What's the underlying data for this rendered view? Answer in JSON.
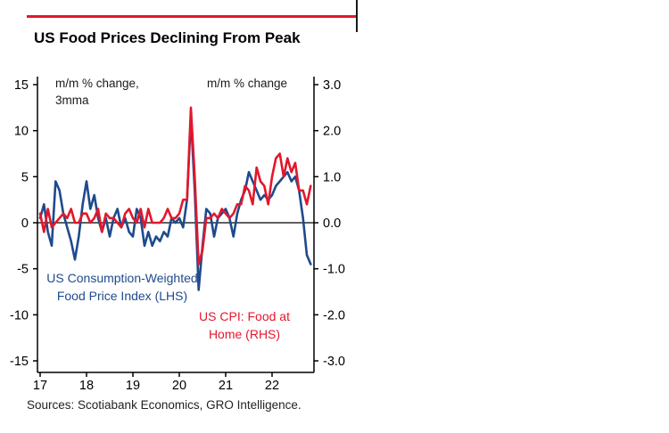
{
  "page": {
    "title": "US Food Prices Declining From Peak",
    "sources": "Sources: Scotiabank Economics, GRO Intelligence."
  },
  "colors": {
    "accent_red": "#e3172c",
    "series_blue": "#1f4a8c",
    "series_red": "#e3172c",
    "axis_black": "#000000"
  },
  "chart_data": {
    "type": "line",
    "title": "US Food Prices Declining From Peak",
    "grid": "zero-line-only",
    "legend_position": "in-plot annotations",
    "left_axis": {
      "caption_line1": "m/m % change,",
      "caption_line2": "3mma",
      "range": [
        -15,
        15
      ],
      "ticks": [
        15,
        10,
        5,
        0,
        -5,
        -10,
        -15
      ],
      "tick_labels": [
        "15",
        "10",
        "5",
        "0",
        "-5",
        "-10",
        "-15"
      ]
    },
    "right_axis": {
      "caption": "m/m % change",
      "range": [
        -3,
        3
      ],
      "ticks": [
        3,
        2,
        1,
        0,
        -1,
        -2,
        -3
      ],
      "tick_labels": [
        "3.0",
        "2.0",
        "1.0",
        "0.0",
        "-1.0",
        "-2.0",
        "-3.0"
      ]
    },
    "x_axis": {
      "tick_labels": [
        "17",
        "18",
        "19",
        "20",
        "21",
        "22"
      ],
      "start": "2017-01",
      "end": "2022-11",
      "frequency": "monthly"
    },
    "series": [
      {
        "name": "US Consumption-Weighted Food Price Index (LHS)",
        "axis": "left",
        "color": "#1f4a8c",
        "values": [
          0.5,
          2.0,
          -1.0,
          -2.5,
          4.5,
          3.5,
          1.0,
          -0.5,
          -2.0,
          -4.0,
          -1.5,
          2.0,
          4.5,
          1.5,
          3.0,
          0.5,
          -1.0,
          0.5,
          -1.5,
          0.5,
          1.5,
          -0.5,
          0.5,
          -1.0,
          -1.5,
          1.5,
          0.5,
          -2.5,
          -1.0,
          -2.5,
          -1.5,
          -2.0,
          -1.0,
          -1.5,
          0.5,
          0.0,
          0.5,
          -0.5,
          2.5,
          11.5,
          3.5,
          -7.3,
          -2.5,
          1.5,
          1.0,
          -1.5,
          0.5,
          1.0,
          1.5,
          0.5,
          -1.5,
          1.0,
          2.5,
          3.5,
          5.5,
          4.5,
          3.5,
          2.5,
          3.0,
          2.5,
          3.0,
          4.0,
          4.5,
          5.0,
          5.5,
          4.5,
          5.0,
          3.5,
          0.5,
          -3.5,
          -4.5
        ]
      },
      {
        "name": "US CPI: Food at Home (RHS)",
        "axis": "right",
        "color": "#e3172c",
        "values": [
          0.2,
          -0.2,
          0.3,
          -0.1,
          0.0,
          0.1,
          0.2,
          0.1,
          0.3,
          0.0,
          0.0,
          0.2,
          0.2,
          0.0,
          0.1,
          0.3,
          -0.2,
          0.2,
          0.1,
          0.1,
          0.0,
          -0.1,
          0.2,
          0.3,
          0.1,
          0.0,
          0.3,
          -0.1,
          0.3,
          0.0,
          0.0,
          0.0,
          0.1,
          0.3,
          0.1,
          0.1,
          0.2,
          0.5,
          0.5,
          2.5,
          1.0,
          -0.9,
          -0.6,
          0.1,
          0.1,
          0.2,
          0.1,
          0.3,
          0.2,
          0.1,
          0.2,
          0.4,
          0.4,
          0.8,
          0.7,
          0.4,
          1.2,
          0.9,
          0.8,
          0.4,
          1.0,
          1.4,
          1.5,
          1.0,
          1.4,
          1.1,
          1.3,
          0.7,
          0.7,
          0.4,
          0.8
        ]
      }
    ]
  }
}
